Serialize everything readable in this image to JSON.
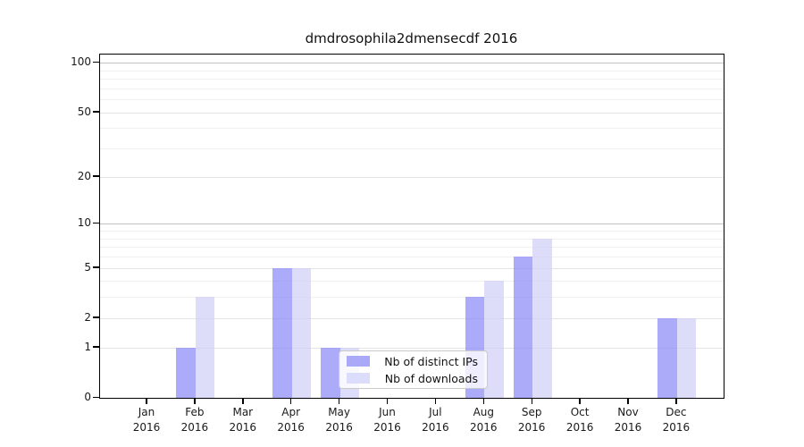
{
  "chart_data": {
    "type": "bar",
    "title": "dmdrosophila2dmensecdf 2016",
    "categories": [
      "Jan",
      "Feb",
      "Mar",
      "Apr",
      "May",
      "Jun",
      "Jul",
      "Aug",
      "Sep",
      "Oct",
      "Nov",
      "Dec"
    ],
    "x_sublabel": "2016",
    "series": [
      {
        "name": "Nb of distinct IPs",
        "bar_color": "rgba(143,143,247,0.75)",
        "legend_color": "#a9a9f8",
        "values": [
          0,
          1,
          0,
          5,
          1,
          0,
          0,
          3,
          6,
          0,
          0,
          2
        ]
      },
      {
        "name": "Nb of downloads",
        "bar_color": "rgba(206,206,248,0.70)",
        "legend_color": "#dcdcfb",
        "values": [
          0,
          3,
          0,
          5,
          1,
          0,
          0,
          4,
          8,
          0,
          0,
          2
        ]
      }
    ],
    "y_scale": "log10(value+1)",
    "ylim": [
      0,
      113
    ],
    "y_ticks_labeled": [
      0,
      1,
      2,
      5,
      10,
      20,
      50,
      100
    ],
    "y_grid_major": [
      1,
      2,
      5,
      20,
      50
    ],
    "y_grid_minor": [
      3,
      4,
      6,
      7,
      8,
      9,
      30,
      40,
      60,
      70,
      80,
      90
    ],
    "y_grid_emphasis": [
      10,
      100
    ],
    "grid_on": true,
    "legend_position": "bottom-center",
    "colors": {
      "axis": "#000000",
      "grid_major": "#e3e3e3",
      "grid_minor": "#f0f0f0",
      "grid_emphasis": "#c3c3c3",
      "text": "#1a1a1a"
    }
  }
}
